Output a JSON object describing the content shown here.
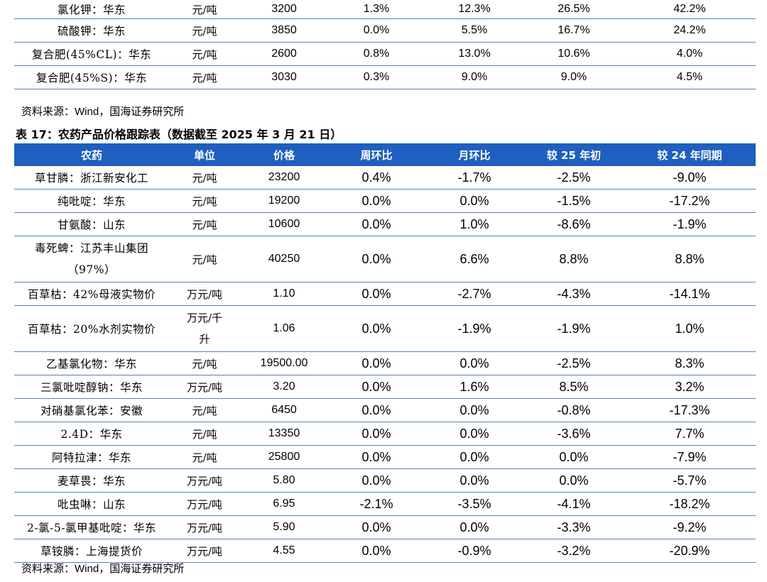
{
  "top_table": {
    "rows": [
      {
        "name": "氯化钾：华东",
        "unit": "元/吨",
        "price": "3200",
        "wow": "1.3%",
        "mom": "12.3%",
        "ytd": "26.5%",
        "yoy": "42.2%"
      },
      {
        "name": "硫酸钾：华东",
        "unit": "元/吨",
        "price": "3850",
        "wow": "0.0%",
        "mom": "5.5%",
        "ytd": "16.7%",
        "yoy": "24.2%"
      },
      {
        "name": "复合肥(45%CL)：华东",
        "unit": "元/吨",
        "price": "2600",
        "wow": "0.8%",
        "mom": "13.0%",
        "ytd": "10.6%",
        "yoy": "4.0%"
      },
      {
        "name": "复合肥(45%S)：华东",
        "unit": "元/吨",
        "price": "3030",
        "wow": "0.3%",
        "mom": "9.0%",
        "ytd": "9.0%",
        "yoy": "4.5%"
      }
    ]
  },
  "source_1": {
    "prefix": "资料来源：",
    "wind": "Wind",
    "suffix": "，国海证券研究所"
  },
  "table_title": "表 17：农药产品价格跟踪表（数据截至 2025 年 3 月 21 日）",
  "main_table": {
    "headers": {
      "product": "农药",
      "unit": "单位",
      "price": "价格",
      "wow": "周环比",
      "mom": "月环比",
      "ytd": "较 25 年初",
      "yoy": "较 24 年同期"
    },
    "rows": [
      {
        "name": "草甘膦：浙江新安化工",
        "unit": "元/吨",
        "price": "23200",
        "wow": "0.4%",
        "mom": "-1.7%",
        "ytd": "-2.5%",
        "yoy": "-9.0%"
      },
      {
        "name": "纯吡啶：华东",
        "unit": "元/吨",
        "price": "19200",
        "wow": "0.0%",
        "mom": "0.0%",
        "ytd": "-1.5%",
        "yoy": "-17.2%"
      },
      {
        "name": "甘氨酸：山东",
        "unit": "元/吨",
        "price": "10600",
        "wow": "0.0%",
        "mom": "1.0%",
        "ytd": "-8.6%",
        "yoy": "-1.9%"
      },
      {
        "name_line1": "毒死蜱：江苏丰山集团",
        "name_line2": "（97%）",
        "unit": "元/吨",
        "price": "40250",
        "wow": "0.0%",
        "mom": "6.6%",
        "ytd": "8.8%",
        "yoy": "8.8%"
      },
      {
        "name": "百草枯：42%母液实物价",
        "unit": "万元/吨",
        "price": "1.10",
        "wow": "0.0%",
        "mom": "-2.7%",
        "ytd": "-4.3%",
        "yoy": "-14.1%"
      },
      {
        "name": "百草枯：20%水剂实物价",
        "unit_line1": "万元/千",
        "unit_line2": "升",
        "price": "1.06",
        "wow": "0.0%",
        "mom": "-1.9%",
        "ytd": "-1.9%",
        "yoy": "1.0%"
      },
      {
        "name": "乙基氯化物：华东",
        "unit": "元/吨",
        "price": "19500.00",
        "wow": "0.0%",
        "mom": "0.0%",
        "ytd": "-2.5%",
        "yoy": "8.3%"
      },
      {
        "name": "三氯吡啶醇钠：华东",
        "unit": "万元/吨",
        "price": "3.20",
        "wow": "0.0%",
        "mom": "1.6%",
        "ytd": "8.5%",
        "yoy": "3.2%"
      },
      {
        "name": "对硝基氯化苯：安徽",
        "unit": "元/吨",
        "price": "6450",
        "wow": "0.0%",
        "mom": "0.0%",
        "ytd": "-0.8%",
        "yoy": "-17.3%"
      },
      {
        "name": "2.4D：华东",
        "unit": "元/吨",
        "price": "13350",
        "wow": "0.0%",
        "mom": "0.0%",
        "ytd": "-3.6%",
        "yoy": "7.7%"
      },
      {
        "name": "阿特拉津：华东",
        "unit": "元/吨",
        "price": "25800",
        "wow": "0.0%",
        "mom": "0.0%",
        "ytd": "0.0%",
        "yoy": "-7.9%"
      },
      {
        "name": "麦草畏：华东",
        "unit": "万元/吨",
        "price": "5.80",
        "wow": "0.0%",
        "mom": "0.0%",
        "ytd": "0.0%",
        "yoy": "-5.7%"
      },
      {
        "name": "吡虫啉：山东",
        "unit": "万元/吨",
        "price": "6.95",
        "wow": "-2.1%",
        "mom": "-3.5%",
        "ytd": "-4.1%",
        "yoy": "-18.2%"
      },
      {
        "name": "2-氯-5-氯甲基吡啶：华东",
        "unit": "万元/吨",
        "price": "5.90",
        "wow": "0.0%",
        "mom": "0.0%",
        "ytd": "-3.3%",
        "yoy": "-9.2%"
      },
      {
        "name": "草铵膦：上海提货价",
        "unit": "万元/吨",
        "price": "4.55",
        "wow": "0.0%",
        "mom": "-0.9%",
        "ytd": "-3.2%",
        "yoy": "-20.9%"
      }
    ]
  },
  "source_2": {
    "prefix": "资料来源：",
    "wind": "Wind",
    "suffix": "，国海证券研究所"
  }
}
